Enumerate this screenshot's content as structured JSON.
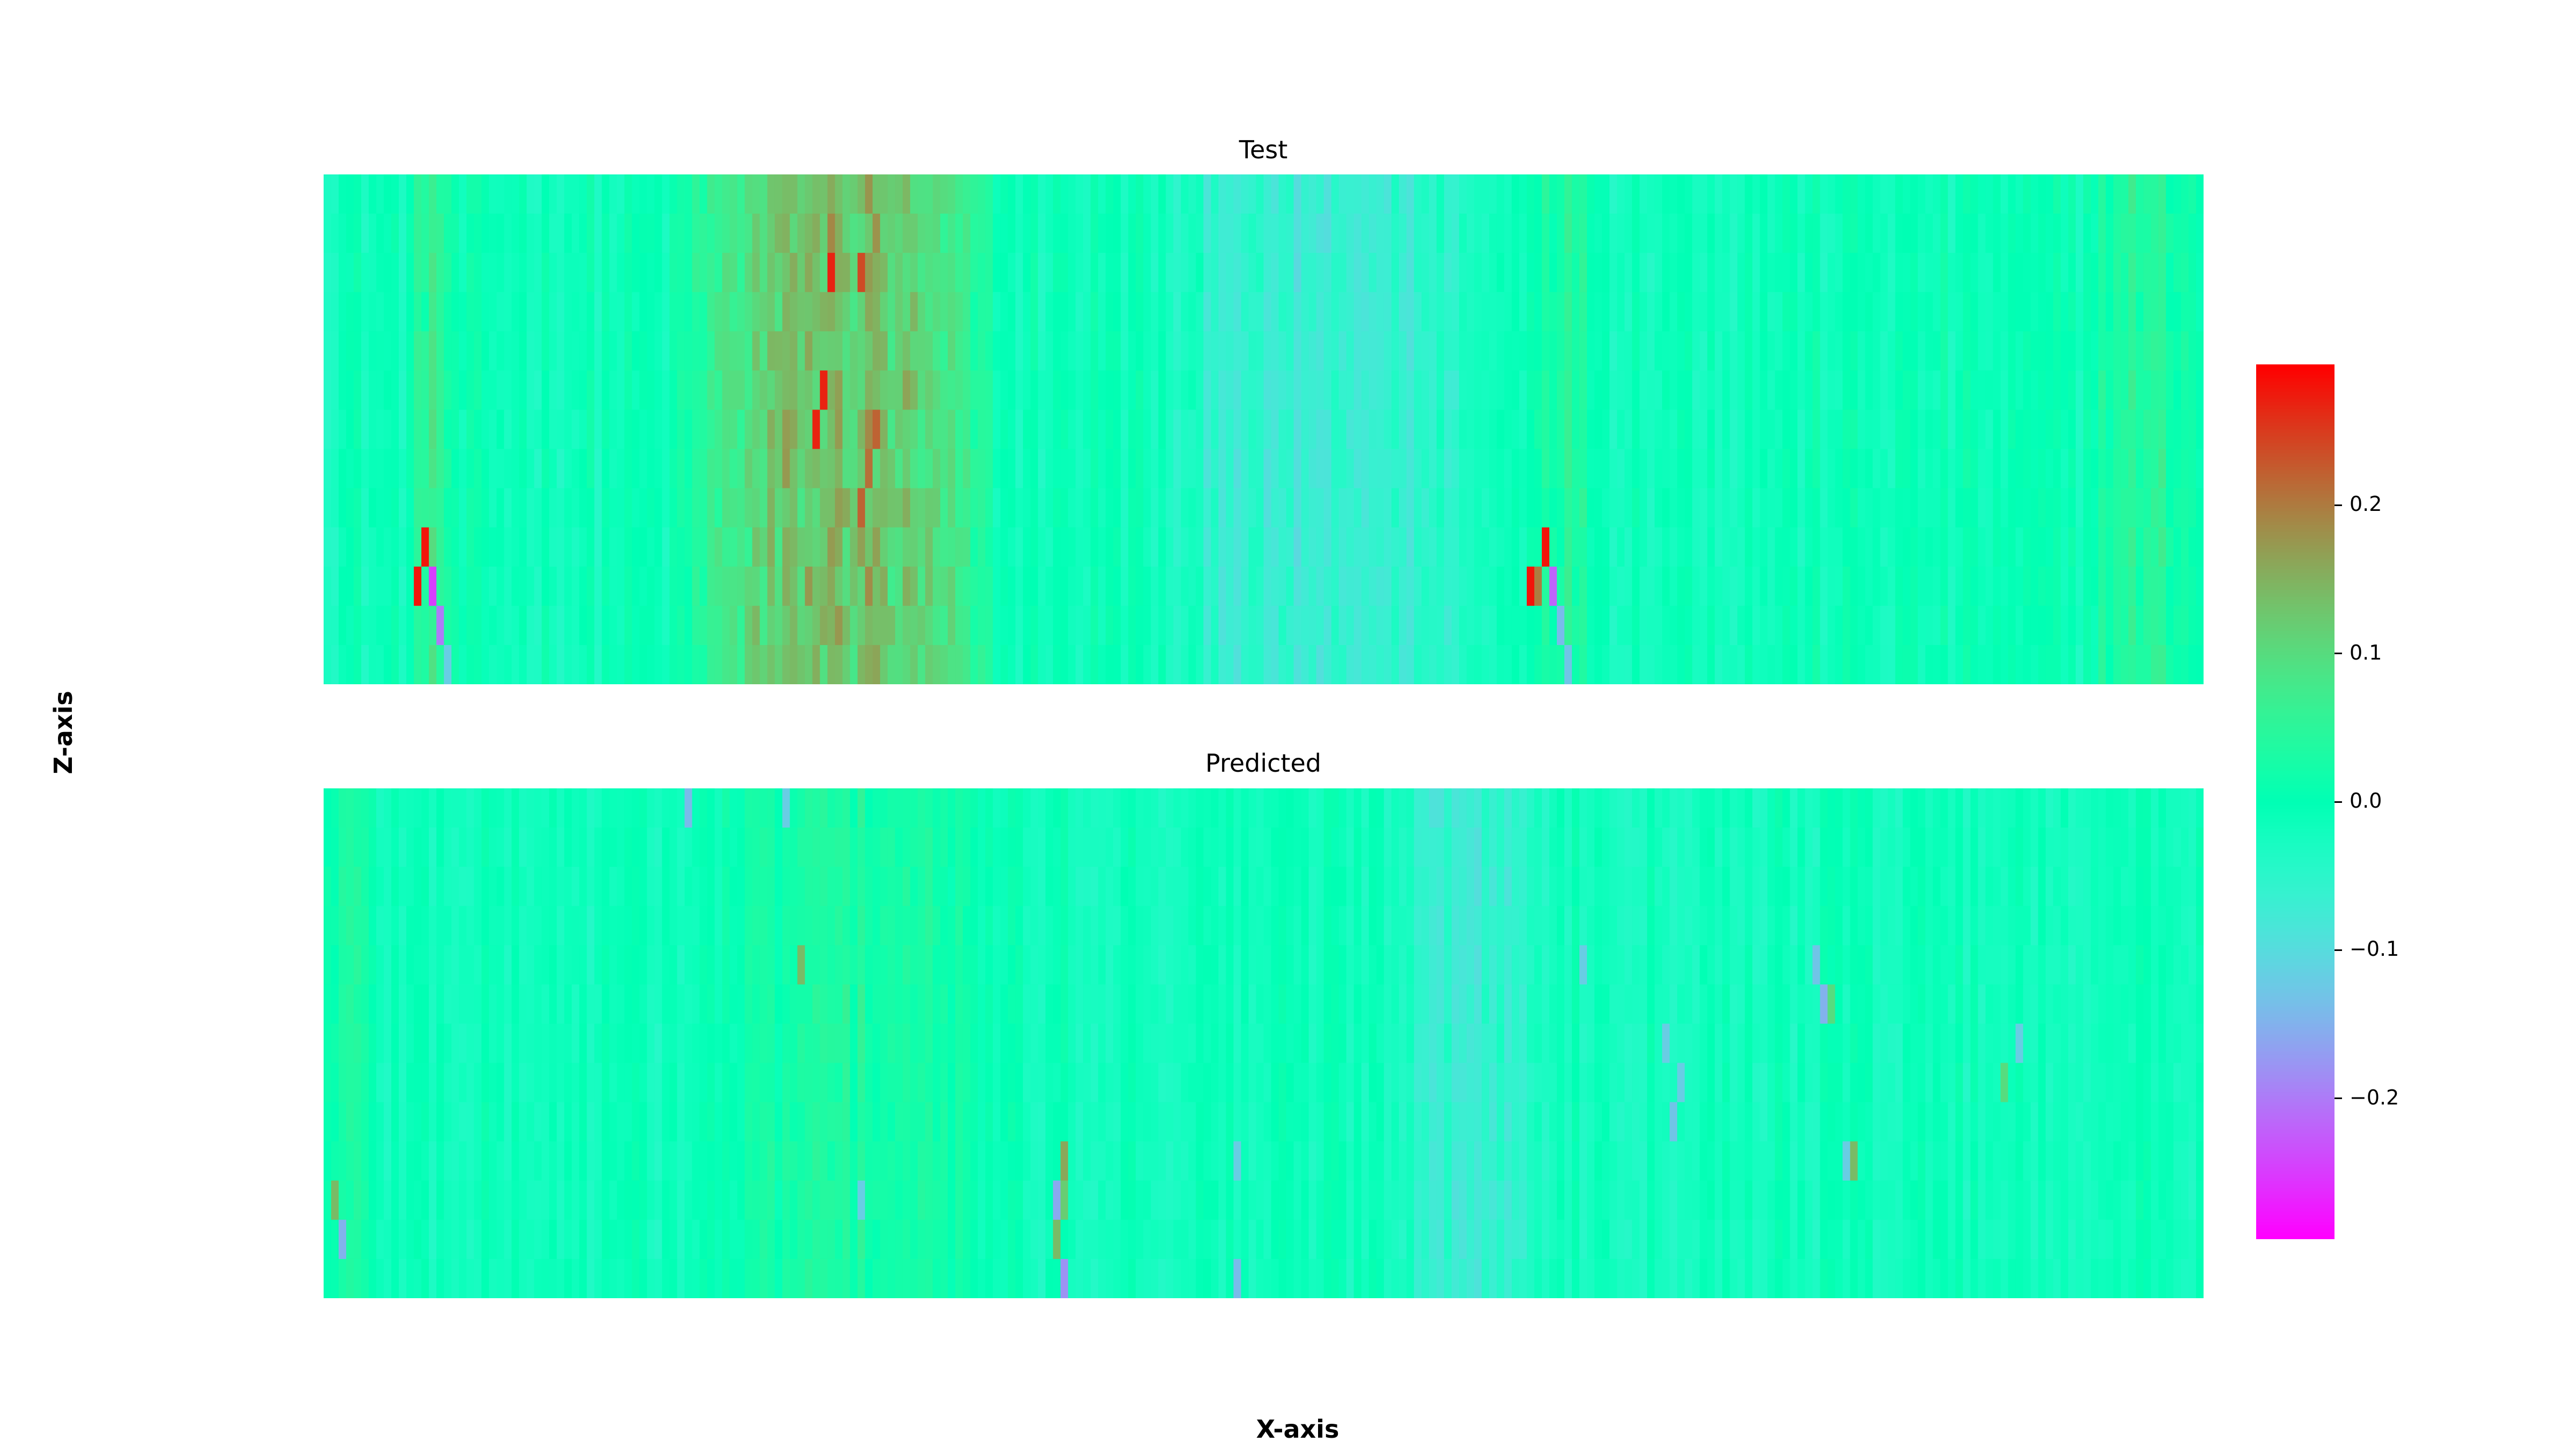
{
  "chart_data": {
    "type": "heatmap",
    "xlabel": "X-axis",
    "ylabel": "Z-axis",
    "colormap": "rainbow",
    "colorbar": {
      "vmin": -0.295,
      "vmax": 0.295,
      "ticks": [
        0.2,
        0.1,
        0.0,
        -0.1,
        -0.2
      ],
      "tick_labels": [
        "0.2",
        "0.1",
        "0.0",
        "−0.1",
        "−0.2"
      ]
    },
    "grid": false,
    "panels": [
      {
        "title": "Test",
        "rows": 13,
        "columns": 250,
        "background_value": -0.01,
        "noise": 0.025,
        "features": [
          {
            "shape": "band",
            "x": [
              52,
              84
            ],
            "z": [
              0,
              13
            ],
            "value": 0.14
          },
          {
            "shape": "band",
            "x": [
              12,
              16
            ],
            "z": [
              0,
              13
            ],
            "value": 0.07
          },
          {
            "shape": "band",
            "x": [
              115,
              150
            ],
            "z": [
              0,
              13
            ],
            "value": -0.075
          },
          {
            "shape": "band",
            "x": [
              160,
              168
            ],
            "z": [
              0,
              13
            ],
            "value": 0.04
          },
          {
            "shape": "band",
            "x": [
              235,
              248
            ],
            "z": [
              0,
              13
            ],
            "value": 0.04
          },
          {
            "shape": "cell",
            "col": 67,
            "row": 2,
            "value": 0.27
          },
          {
            "shape": "cell",
            "col": 71,
            "row": 2,
            "value": 0.24
          },
          {
            "shape": "cell",
            "col": 66,
            "row": 5,
            "value": 0.27
          },
          {
            "shape": "cell",
            "col": 65,
            "row": 6,
            "value": 0.27
          },
          {
            "shape": "cell",
            "col": 73,
            "row": 6,
            "value": 0.22
          },
          {
            "shape": "cell",
            "col": 72,
            "row": 7,
            "value": 0.21
          },
          {
            "shape": "cell",
            "col": 71,
            "row": 8,
            "value": 0.22
          },
          {
            "shape": "cell",
            "col": 13,
            "row": 9,
            "value": 0.28
          },
          {
            "shape": "cell",
            "col": 12,
            "row": 10,
            "value": 0.28
          },
          {
            "shape": "cell",
            "col": 14,
            "row": 10,
            "value": -0.25
          },
          {
            "shape": "cell",
            "col": 15,
            "row": 11,
            "value": -0.2
          },
          {
            "shape": "cell",
            "col": 16,
            "row": 12,
            "value": -0.12
          },
          {
            "shape": "cell",
            "col": 162,
            "row": 9,
            "value": 0.28
          },
          {
            "shape": "cell",
            "col": 160,
            "row": 10,
            "value": 0.28
          },
          {
            "shape": "cell",
            "col": 161,
            "row": 10,
            "value": 0.2
          },
          {
            "shape": "cell",
            "col": 163,
            "row": 10,
            "value": -0.22
          },
          {
            "shape": "cell",
            "col": 164,
            "row": 11,
            "value": -0.14
          },
          {
            "shape": "cell",
            "col": 165,
            "row": 12,
            "value": -0.13
          }
        ]
      },
      {
        "title": "Predicted",
        "rows": 13,
        "columns": 250,
        "background_value": -0.015,
        "noise": 0.022,
        "features": [
          {
            "shape": "band",
            "x": [
              145,
              160
            ],
            "z": [
              0,
              13
            ],
            "value": -0.07
          },
          {
            "shape": "band",
            "x": [
              55,
              85
            ],
            "z": [
              0,
              13
            ],
            "value": 0.03
          },
          {
            "shape": "band",
            "x": [
              0,
              6
            ],
            "z": [
              0,
              13
            ],
            "value": 0.03
          },
          {
            "shape": "cell",
            "col": 48,
            "row": 0,
            "value": -0.14
          },
          {
            "shape": "cell",
            "col": 61,
            "row": 0,
            "value": -0.12
          },
          {
            "shape": "cell",
            "col": 63,
            "row": 4,
            "value": 0.14
          },
          {
            "shape": "cell",
            "col": 167,
            "row": 4,
            "value": -0.12
          },
          {
            "shape": "cell",
            "col": 198,
            "row": 4,
            "value": -0.13
          },
          {
            "shape": "cell",
            "col": 199,
            "row": 5,
            "value": -0.15
          },
          {
            "shape": "cell",
            "col": 200,
            "row": 5,
            "value": 0.1
          },
          {
            "shape": "cell",
            "col": 178,
            "row": 6,
            "value": -0.12
          },
          {
            "shape": "cell",
            "col": 225,
            "row": 6,
            "value": -0.12
          },
          {
            "shape": "cell",
            "col": 180,
            "row": 7,
            "value": -0.12
          },
          {
            "shape": "cell",
            "col": 223,
            "row": 7,
            "value": 0.1
          },
          {
            "shape": "cell",
            "col": 179,
            "row": 8,
            "value": -0.13
          },
          {
            "shape": "cell",
            "col": 98,
            "row": 9,
            "value": 0.16
          },
          {
            "shape": "cell",
            "col": 121,
            "row": 9,
            "value": -0.12
          },
          {
            "shape": "cell",
            "col": 202,
            "row": 9,
            "value": -0.12
          },
          {
            "shape": "cell",
            "col": 203,
            "row": 9,
            "value": 0.14
          },
          {
            "shape": "cell",
            "col": 1,
            "row": 10,
            "value": 0.14
          },
          {
            "shape": "cell",
            "col": 71,
            "row": 10,
            "value": -0.12
          },
          {
            "shape": "cell",
            "col": 97,
            "row": 10,
            "value": -0.16
          },
          {
            "shape": "cell",
            "col": 98,
            "row": 10,
            "value": 0.12
          },
          {
            "shape": "cell",
            "col": 2,
            "row": 11,
            "value": -0.15
          },
          {
            "shape": "cell",
            "col": 97,
            "row": 11,
            "value": 0.14
          },
          {
            "shape": "cell",
            "col": 98,
            "row": 12,
            "value": -0.18
          },
          {
            "shape": "cell",
            "col": 121,
            "row": 12,
            "value": -0.14
          }
        ]
      }
    ]
  }
}
